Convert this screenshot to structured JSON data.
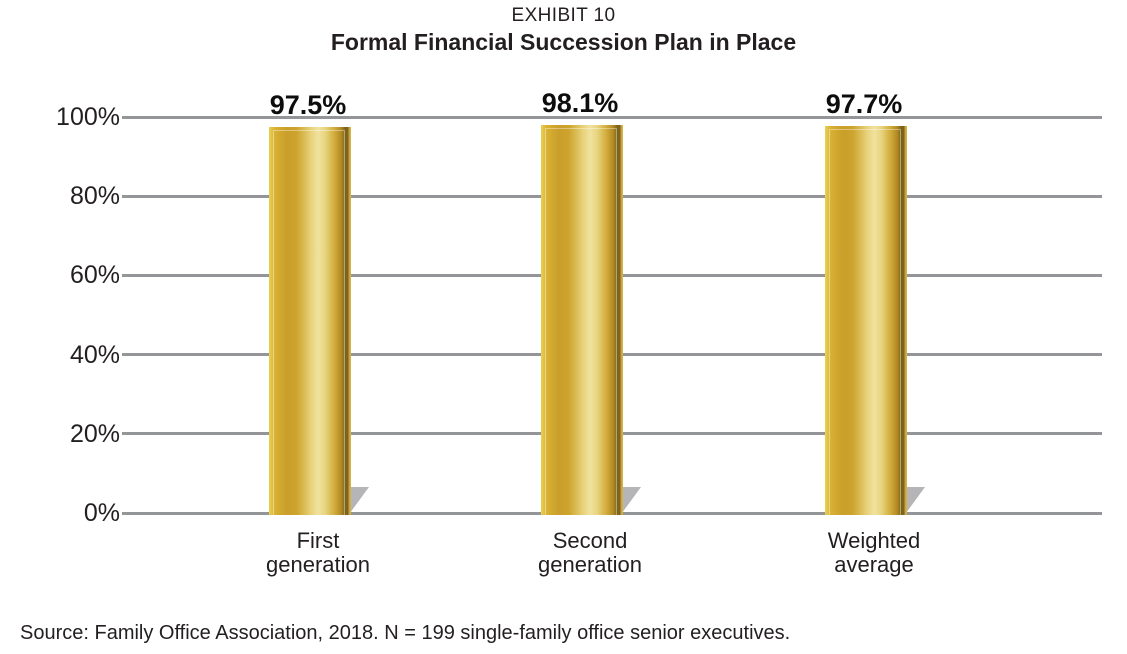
{
  "header": {
    "exhibit": "EXHIBIT 10",
    "title": "Formal Financial Succession Plan in Place"
  },
  "chart_data": {
    "type": "bar",
    "title": "Formal Financial Succession Plan in Place",
    "subtitle": "EXHIBIT 10",
    "categories": [
      "First generation",
      "Second generation",
      "Weighted average"
    ],
    "values": [
      97.5,
      98.1,
      97.7
    ],
    "value_labels": [
      "97.5%",
      "98.1%",
      "97.7%"
    ],
    "xlabel": "",
    "ylabel": "",
    "ylim": [
      0,
      100
    ],
    "yticks": [
      0,
      20,
      40,
      60,
      80,
      100
    ],
    "ytick_labels": [
      "0%",
      "20%",
      "40%",
      "60%",
      "80%",
      "100%"
    ],
    "grid": true,
    "legend": false,
    "colors": {
      "bar_highlight": "#f0e29e",
      "bar_mid": "#d1a92f",
      "bar_dark_edge": "#7d641a",
      "gridline": "#939598",
      "shadow": "#b5b5b7",
      "text": "#231f20",
      "value_label": "#0d0d0d"
    }
  },
  "footer": {
    "source": "Source: Family Office Association, 2018. N = 199 single-family office senior executives."
  }
}
